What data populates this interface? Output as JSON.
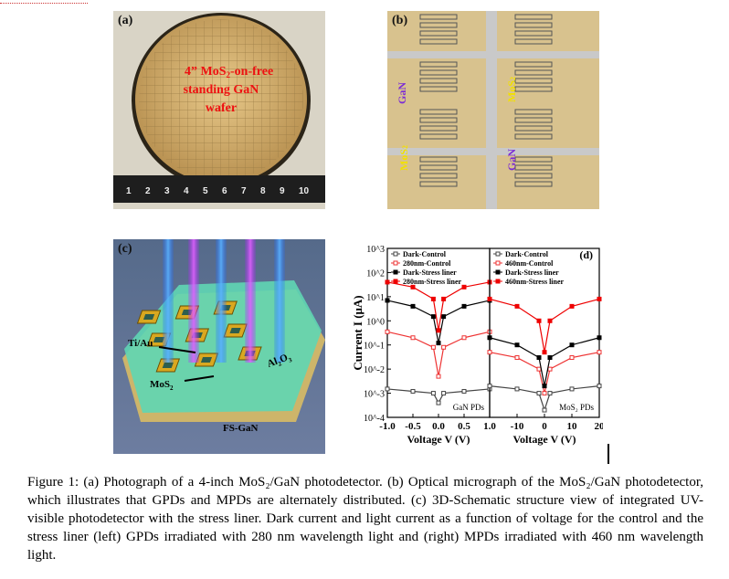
{
  "panel_a": {
    "label": "(a)",
    "wafer_text": [
      "4” MoS",
      "2",
      "-on-free",
      "standing GaN",
      "wafer"
    ],
    "ruler_numbers": [
      "1",
      "2",
      "3",
      "4",
      "5",
      "6",
      "7",
      "8",
      "9",
      "10"
    ]
  },
  "panel_b": {
    "label": "(b)",
    "labels": {
      "gan_left": "GaN",
      "mos2_right": "MoS",
      "mos2_left": "MoS",
      "gan_right": "GaN",
      "sub": "2"
    }
  },
  "panel_c": {
    "label": "(c)",
    "ti_au": "Ti/Au",
    "mos2": "MoS",
    "al2o3": "Al",
    "fsgan": "FS-GaN"
  },
  "chart_data": {
    "type": "line",
    "panel_label": "(d)",
    "ylabel": "Current I (μA)",
    "yscale": "log",
    "ylim": [
      0.0001,
      1000
    ],
    "ytick_labels": [
      "10^3",
      "10^2",
      "10^1",
      "10^0",
      "10^-1",
      "10^-2",
      "10^-3",
      "10^-4"
    ],
    "subplots": [
      {
        "name": "GaN PDs",
        "xlabel": "Voltage V (V)",
        "xlim": [
          -1.0,
          1.0
        ],
        "xtick_labels": [
          "-1.0",
          "-0.5",
          "0.0",
          "0.5",
          "1.0"
        ],
        "series": [
          {
            "name": "Dark-Control",
            "x": [
              -1.0,
              -0.5,
              -0.1,
              0.0,
              0.1,
              0.5,
              1.0
            ],
            "y": [
              0.0015,
              0.0012,
              0.001,
              0.0004,
              0.001,
              0.0012,
              0.0015
            ]
          },
          {
            "name": "280nm-Control",
            "x": [
              -1.0,
              -0.5,
              -0.1,
              0.0,
              0.1,
              0.5,
              1.0
            ],
            "y": [
              0.35,
              0.2,
              0.08,
              0.005,
              0.08,
              0.2,
              0.35
            ]
          },
          {
            "name": "Dark-Stress liner",
            "x": [
              -1.0,
              -0.5,
              -0.1,
              0.0,
              0.1,
              0.5,
              1.0
            ],
            "y": [
              7,
              4,
              1.5,
              0.12,
              1.5,
              4,
              7
            ]
          },
          {
            "name": "280nm-Stress liner",
            "x": [
              -1.0,
              -0.5,
              -0.1,
              0.0,
              0.1,
              0.5,
              1.0
            ],
            "y": [
              40,
              25,
              8,
              0.4,
              8,
              25,
              40
            ]
          }
        ]
      },
      {
        "name": "MoS₂ PDs",
        "xlabel": "Voltage V (V)",
        "xlim": [
          -20,
          20
        ],
        "xtick_labels": [
          "-10",
          "0",
          "10",
          "20"
        ],
        "series": [
          {
            "name": "Dark-Control",
            "x": [
              -20,
              -10,
              -2,
              0,
              2,
              10,
              20
            ],
            "y": [
              0.002,
              0.0015,
              0.001,
              0.0002,
              0.001,
              0.0015,
              0.002
            ]
          },
          {
            "name": "460nm-Control",
            "x": [
              -20,
              -10,
              -2,
              0,
              2,
              10,
              20
            ],
            "y": [
              0.05,
              0.03,
              0.01,
              0.001,
              0.01,
              0.03,
              0.05
            ]
          },
          {
            "name": "Dark-Stress liner",
            "x": [
              -20,
              -10,
              -2,
              0,
              2,
              10,
              20
            ],
            "y": [
              0.2,
              0.1,
              0.03,
              0.002,
              0.03,
              0.1,
              0.2
            ]
          },
          {
            "name": "460nm-Stress liner",
            "x": [
              -20,
              -10,
              -2,
              0,
              2,
              10,
              20
            ],
            "y": [
              8,
              4,
              1.0,
              0.05,
              1.0,
              4,
              8
            ]
          }
        ]
      }
    ]
  },
  "caption": "Figure 1: (a) Photograph of a 4-inch MoS₂/GaN photodetector. (b) Optical micrograph of the MoS₂/GaN photodetector, which illustrates that GPDs and MPDs are alternately distributed. (c) 3D-Schematic structure view of integrated UV-visible photodetector with the stress liner. Dark current and light current as a function of voltage for the control and the stress liner (left) GPDs irradiated with 280 nm wavelength light and (right) MPDs irradiated with 460 nm wavelength light."
}
